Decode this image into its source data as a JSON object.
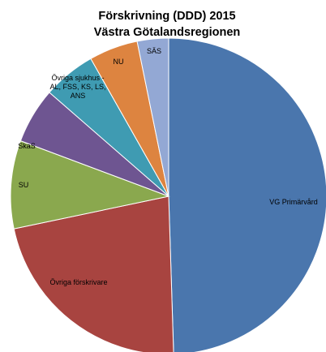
{
  "chart_data": {
    "type": "pie",
    "title_lines": [
      "Förskrivning (DDD) 2015",
      "Västra Götalandsregionen"
    ],
    "start_angle_deg": 0,
    "direction": "clockwise",
    "slices": [
      {
        "label": "VG Primärvård",
        "label_lines": [
          "VG Primärvård"
        ],
        "value": 49.5,
        "color": "#4a76ad"
      },
      {
        "label": "Övriga förskrivare",
        "label_lines": [
          "Övriga förskrivare"
        ],
        "value": 22.2,
        "color": "#a84440"
      },
      {
        "label": "SU",
        "label_lines": [
          "SU"
        ],
        "value": 9.0,
        "color": "#8aa84e"
      },
      {
        "label": "SkaS",
        "label_lines": [
          "SkaS"
        ],
        "value": 5.7,
        "color": "#6e5591"
      },
      {
        "label": "Övriga sjukhus - AL, FSS, KS, LS, ANS",
        "label_lines": [
          "Övriga sjukhus  -",
          "AL, FSS, KS, LS,",
          "ANS"
        ],
        "value": 5.4,
        "color": "#3f9bb2"
      },
      {
        "label": "NU",
        "label_lines": [
          "NU"
        ],
        "value": 5.0,
        "color": "#dd8440"
      },
      {
        "label": "SÄS",
        "label_lines": [
          "SÄS"
        ],
        "value": 3.2,
        "color": "#93a8d4"
      }
    ]
  }
}
